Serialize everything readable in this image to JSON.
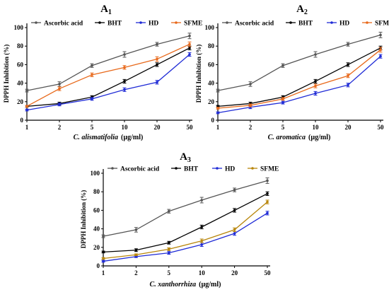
{
  "chart_data": [
    {
      "type": "line",
      "title": "A",
      "title_sub": "1",
      "ylabel": "DPPH Inhibition (%)",
      "xlabel_species": "C. alismatifolia",
      "xlabel_unit": "(µg/ml)",
      "categories": [
        "1",
        "2",
        "5",
        "10",
        "20",
        "50"
      ],
      "ylim": [
        0,
        100
      ],
      "yticks": [
        "0",
        "20",
        "40",
        "60",
        "80",
        "100"
      ],
      "legend_position": "top",
      "series": [
        {
          "name": "Ascorbic acid",
          "color": "#555555",
          "values": [
            32,
            39,
            59,
            71,
            82,
            91
          ],
          "errors": [
            1.5,
            2.5,
            2,
            3,
            2,
            3
          ]
        },
        {
          "name": "BHT",
          "color": "#000000",
          "values": [
            15,
            18,
            25,
            42,
            60,
            78
          ],
          "errors": [
            1,
            1.5,
            1.5,
            2,
            2,
            2
          ]
        },
        {
          "name": "HD",
          "color": "#1f2bd6",
          "values": [
            11,
            17,
            23,
            33,
            41,
            71
          ],
          "errors": [
            1,
            1.5,
            1.5,
            2,
            2,
            2
          ]
        },
        {
          "name": "SFME",
          "color": "#e8691b",
          "values": [
            15,
            34,
            49,
            57,
            66,
            82
          ],
          "errors": [
            1,
            2,
            2,
            2,
            2.5,
            2.5
          ]
        }
      ]
    },
    {
      "type": "line",
      "title": "A",
      "title_sub": "2",
      "ylabel": "DPPH Inhibition (%)",
      "xlabel_species": "C. aromatica",
      "xlabel_unit": "(µg/ml)",
      "categories": [
        "1",
        "2",
        "5",
        "10",
        "20",
        "50"
      ],
      "ylim": [
        0,
        100
      ],
      "yticks": [
        "0",
        "20",
        "40",
        "60",
        "80",
        "100"
      ],
      "legend_position": "top",
      "series": [
        {
          "name": "Ascorbic acid",
          "color": "#555555",
          "values": [
            32,
            39,
            59,
            71,
            82,
            92
          ],
          "errors": [
            1.5,
            2.5,
            2,
            3,
            2,
            3
          ]
        },
        {
          "name": "BHT",
          "color": "#000000",
          "values": [
            15,
            18,
            25,
            42,
            60,
            78
          ],
          "errors": [
            1,
            1.5,
            1.5,
            2,
            2,
            2
          ]
        },
        {
          "name": "HD",
          "color": "#1f2bd6",
          "values": [
            8,
            14,
            19,
            29,
            38,
            69
          ],
          "errors": [
            1,
            1.5,
            1.5,
            2,
            2,
            2
          ]
        },
        {
          "name": "SFME",
          "color": "#e8691b",
          "values": [
            13,
            16,
            23,
            37,
            48,
            76
          ],
          "errors": [
            1,
            1.5,
            1.5,
            2,
            2,
            2.5
          ]
        }
      ]
    },
    {
      "type": "line",
      "title": "A",
      "title_sub": "3",
      "ylabel": "DPPH Inhibition (%)",
      "xlabel_species": "C. xanthorrhiza",
      "xlabel_unit": "(µg/ml)",
      "categories": [
        "1",
        "2",
        "5",
        "10",
        "20",
        "50"
      ],
      "ylim": [
        0,
        100
      ],
      "yticks": [
        "0",
        "20",
        "40",
        "60",
        "80",
        "100"
      ],
      "legend_position": "top",
      "series": [
        {
          "name": "Ascorbic acid",
          "color": "#555555",
          "values": [
            32,
            39,
            59,
            71,
            82,
            92
          ],
          "errors": [
            1.5,
            2.5,
            2,
            3,
            2,
            3
          ]
        },
        {
          "name": "BHT",
          "color": "#000000",
          "values": [
            15,
            17,
            25,
            42,
            60,
            78
          ],
          "errors": [
            1,
            1.5,
            1.5,
            2,
            2,
            2
          ]
        },
        {
          "name": "HD",
          "color": "#1f2bd6",
          "values": [
            5,
            10,
            14,
            23,
            35,
            57
          ],
          "errors": [
            1,
            1,
            1.5,
            2,
            2,
            2
          ]
        },
        {
          "name": "SFME",
          "color": "#b8860b",
          "values": [
            8,
            12,
            18,
            27,
            39,
            69
          ],
          "errors": [
            1,
            1,
            1.5,
            2,
            2,
            2
          ]
        }
      ]
    }
  ]
}
